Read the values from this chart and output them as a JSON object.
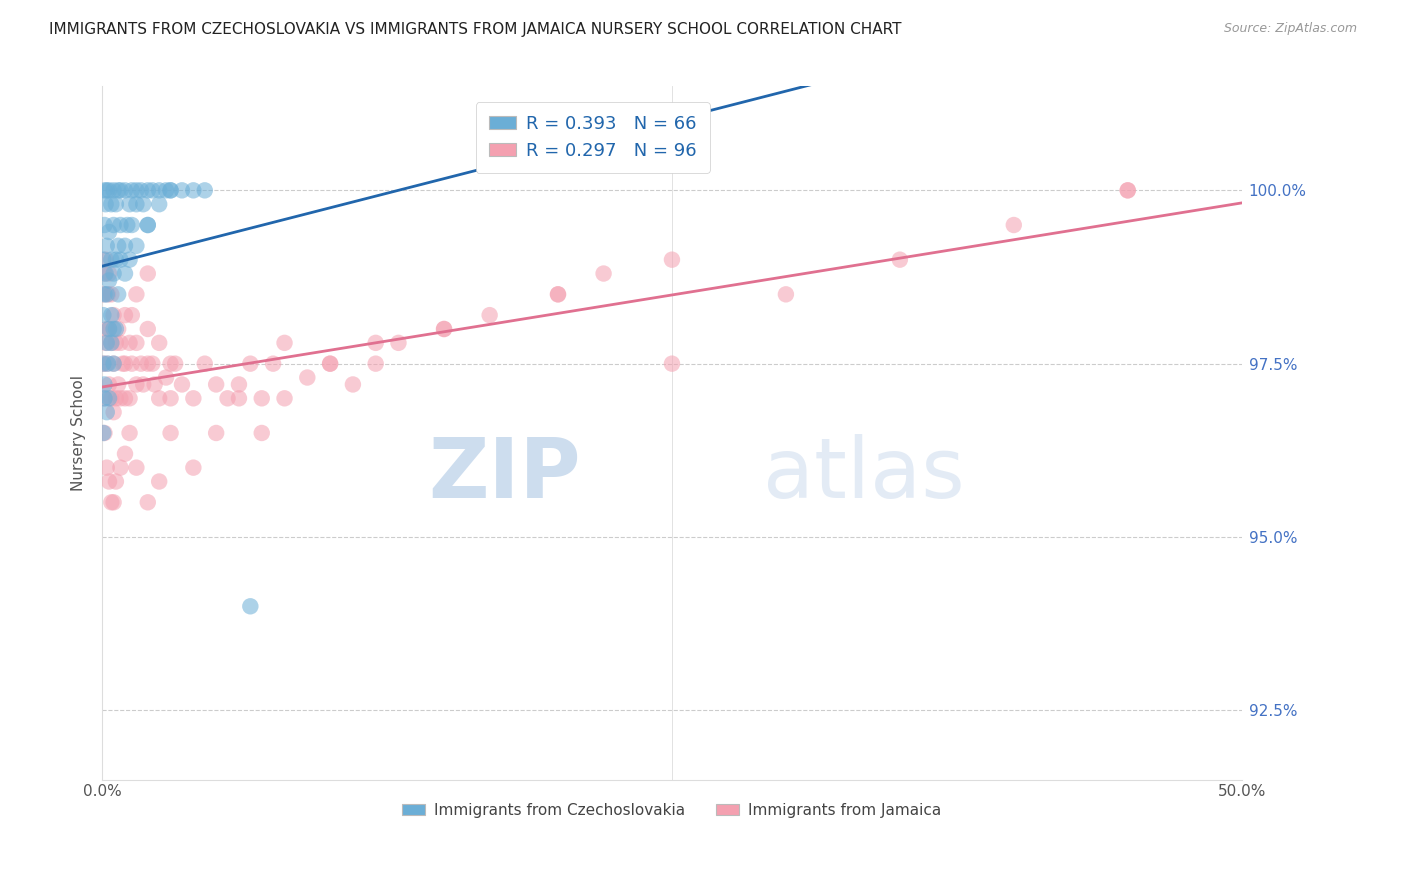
{
  "title": "IMMIGRANTS FROM CZECHOSLOVAKIA VS IMMIGRANTS FROM JAMAICA NURSERY SCHOOL CORRELATION CHART",
  "source": "Source: ZipAtlas.com",
  "ylabel": "Nursery School",
  "xlim": [
    0.0,
    50.0
  ],
  "ylim": [
    91.5,
    101.5
  ],
  "yticks": [
    92.5,
    95.0,
    97.5,
    100.0
  ],
  "xtick_labels": [
    "0.0%",
    "",
    "",
    "",
    "50.0%"
  ],
  "xtick_vals": [
    0.0,
    12.5,
    25.0,
    37.5,
    50.0
  ],
  "ytick_labels": [
    "92.5%",
    "95.0%",
    "97.5%",
    "100.0%"
  ],
  "blue_R": 0.393,
  "blue_N": 66,
  "pink_R": 0.297,
  "pink_N": 96,
  "blue_color": "#6baed6",
  "pink_color": "#f4a0b0",
  "blue_line_color": "#2166ac",
  "pink_line_color": "#e07090",
  "watermark_zip": "ZIP",
  "watermark_atlas": "atlas",
  "legend_label_blue": "Immigrants from Czechoslovakia",
  "legend_label_pink": "Immigrants from Jamaica",
  "blue_scatter_x": [
    0.05,
    0.05,
    0.05,
    0.1,
    0.1,
    0.1,
    0.1,
    0.15,
    0.15,
    0.2,
    0.2,
    0.2,
    0.2,
    0.3,
    0.3,
    0.3,
    0.3,
    0.4,
    0.4,
    0.4,
    0.5,
    0.5,
    0.5,
    0.5,
    0.6,
    0.6,
    0.7,
    0.7,
    0.8,
    0.8,
    0.8,
    1.0,
    1.0,
    1.1,
    1.2,
    1.3,
    1.3,
    1.5,
    1.5,
    1.7,
    1.8,
    2.0,
    2.0,
    2.2,
    2.5,
    2.8,
    3.0,
    3.5,
    4.0,
    4.5,
    0.05,
    0.1,
    0.2,
    0.25,
    0.3,
    0.4,
    0.5,
    0.6,
    0.7,
    1.0,
    1.2,
    1.5,
    2.0,
    2.5,
    3.0,
    6.5
  ],
  "blue_scatter_y": [
    97.5,
    98.2,
    99.0,
    97.0,
    98.5,
    99.5,
    100.0,
    98.8,
    99.8,
    97.8,
    98.5,
    99.2,
    100.0,
    98.0,
    98.7,
    99.4,
    100.0,
    98.2,
    99.0,
    99.8,
    98.0,
    98.8,
    99.5,
    100.0,
    99.0,
    99.8,
    99.2,
    100.0,
    99.0,
    99.5,
    100.0,
    99.2,
    100.0,
    99.5,
    99.8,
    99.5,
    100.0,
    99.8,
    100.0,
    100.0,
    99.8,
    99.5,
    100.0,
    100.0,
    100.0,
    100.0,
    100.0,
    100.0,
    100.0,
    100.0,
    96.5,
    97.2,
    96.8,
    97.5,
    97.0,
    97.8,
    97.5,
    98.0,
    98.5,
    98.8,
    99.0,
    99.2,
    99.5,
    99.8,
    100.0,
    94.0
  ],
  "pink_scatter_x": [
    0.05,
    0.05,
    0.1,
    0.1,
    0.15,
    0.15,
    0.2,
    0.2,
    0.25,
    0.3,
    0.3,
    0.3,
    0.4,
    0.4,
    0.4,
    0.5,
    0.5,
    0.5,
    0.6,
    0.6,
    0.7,
    0.7,
    0.8,
    0.8,
    0.9,
    1.0,
    1.0,
    1.0,
    1.2,
    1.2,
    1.3,
    1.3,
    1.5,
    1.5,
    1.5,
    1.7,
    1.8,
    2.0,
    2.0,
    2.0,
    2.2,
    2.3,
    2.5,
    2.5,
    2.8,
    3.0,
    3.0,
    3.2,
    3.5,
    4.0,
    4.5,
    5.0,
    5.5,
    6.0,
    6.5,
    7.0,
    7.5,
    8.0,
    9.0,
    10.0,
    11.0,
    12.0,
    13.0,
    15.0,
    17.0,
    20.0,
    22.0,
    25.0,
    30.0,
    35.0,
    40.0,
    45.0,
    0.1,
    0.2,
    0.3,
    0.4,
    0.5,
    0.6,
    0.8,
    1.0,
    1.2,
    1.5,
    2.0,
    2.5,
    3.0,
    4.0,
    5.0,
    6.0,
    7.0,
    8.0,
    10.0,
    12.0,
    15.0,
    20.0,
    25.0,
    45.0
  ],
  "pink_scatter_y": [
    97.5,
    98.5,
    97.0,
    98.8,
    97.8,
    99.0,
    97.5,
    98.0,
    98.5,
    97.2,
    98.0,
    98.8,
    97.0,
    97.8,
    98.5,
    96.8,
    97.5,
    98.2,
    97.0,
    97.8,
    97.2,
    98.0,
    97.0,
    97.8,
    97.5,
    97.0,
    97.5,
    98.2,
    97.0,
    97.8,
    97.5,
    98.2,
    97.2,
    97.8,
    98.5,
    97.5,
    97.2,
    97.5,
    98.0,
    98.8,
    97.5,
    97.2,
    97.0,
    97.8,
    97.3,
    97.5,
    97.0,
    97.5,
    97.2,
    97.0,
    97.5,
    97.2,
    97.0,
    97.2,
    97.5,
    97.0,
    97.5,
    97.8,
    97.3,
    97.5,
    97.2,
    97.5,
    97.8,
    98.0,
    98.2,
    98.5,
    98.8,
    97.5,
    98.5,
    99.0,
    99.5,
    100.0,
    96.5,
    96.0,
    95.8,
    95.5,
    95.5,
    95.8,
    96.0,
    96.2,
    96.5,
    96.0,
    95.5,
    95.8,
    96.5,
    96.0,
    96.5,
    97.0,
    96.5,
    97.0,
    97.5,
    97.8,
    98.0,
    98.5,
    99.0,
    100.0
  ]
}
